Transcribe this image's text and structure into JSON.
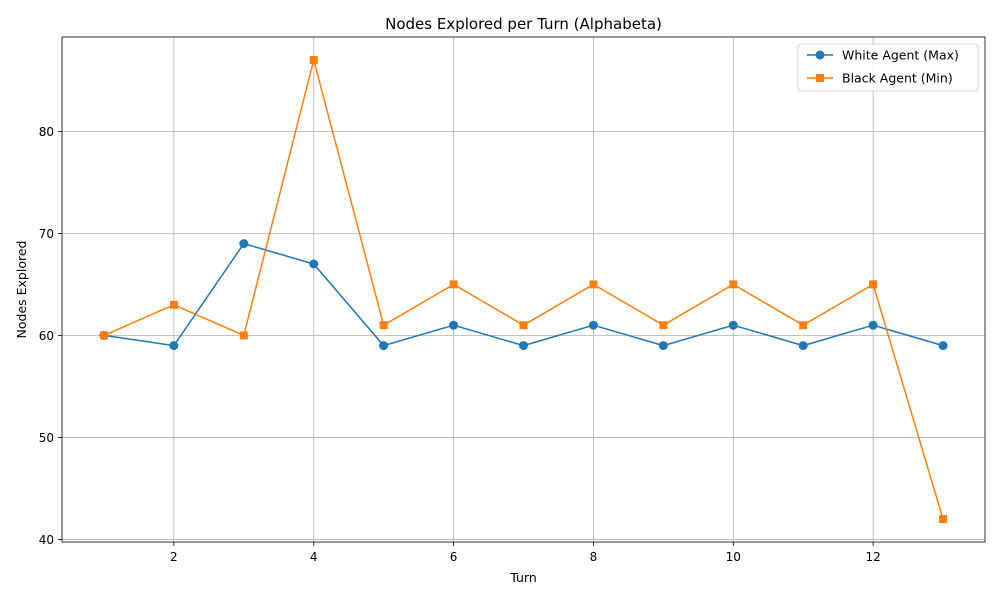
{
  "chart_data": {
    "type": "line",
    "title": "Nodes Explored per Turn (Alphabeta)",
    "xlabel": "Turn",
    "ylabel": "Nodes Explored",
    "xlim": [
      0.4,
      13.6
    ],
    "ylim": [
      39.75,
      89.25
    ],
    "xticks": [
      2,
      4,
      6,
      8,
      10,
      12
    ],
    "yticks": [
      40,
      50,
      60,
      70,
      80
    ],
    "grid": true,
    "legend_position": "top-right",
    "x": [
      1,
      2,
      3,
      4,
      5,
      6,
      7,
      8,
      9,
      10,
      11,
      12,
      13
    ],
    "series": [
      {
        "name": "White Agent (Max)",
        "color": "#1f77b4",
        "marker": "circle",
        "values": [
          60,
          59,
          69,
          67,
          59,
          61,
          59,
          61,
          59,
          61,
          59,
          61,
          59
        ]
      },
      {
        "name": "Black Agent (Min)",
        "color": "#ff7f0e",
        "marker": "square",
        "values": [
          60,
          63,
          60,
          87,
          61,
          65,
          61,
          65,
          61,
          65,
          61,
          65,
          42
        ]
      }
    ]
  }
}
